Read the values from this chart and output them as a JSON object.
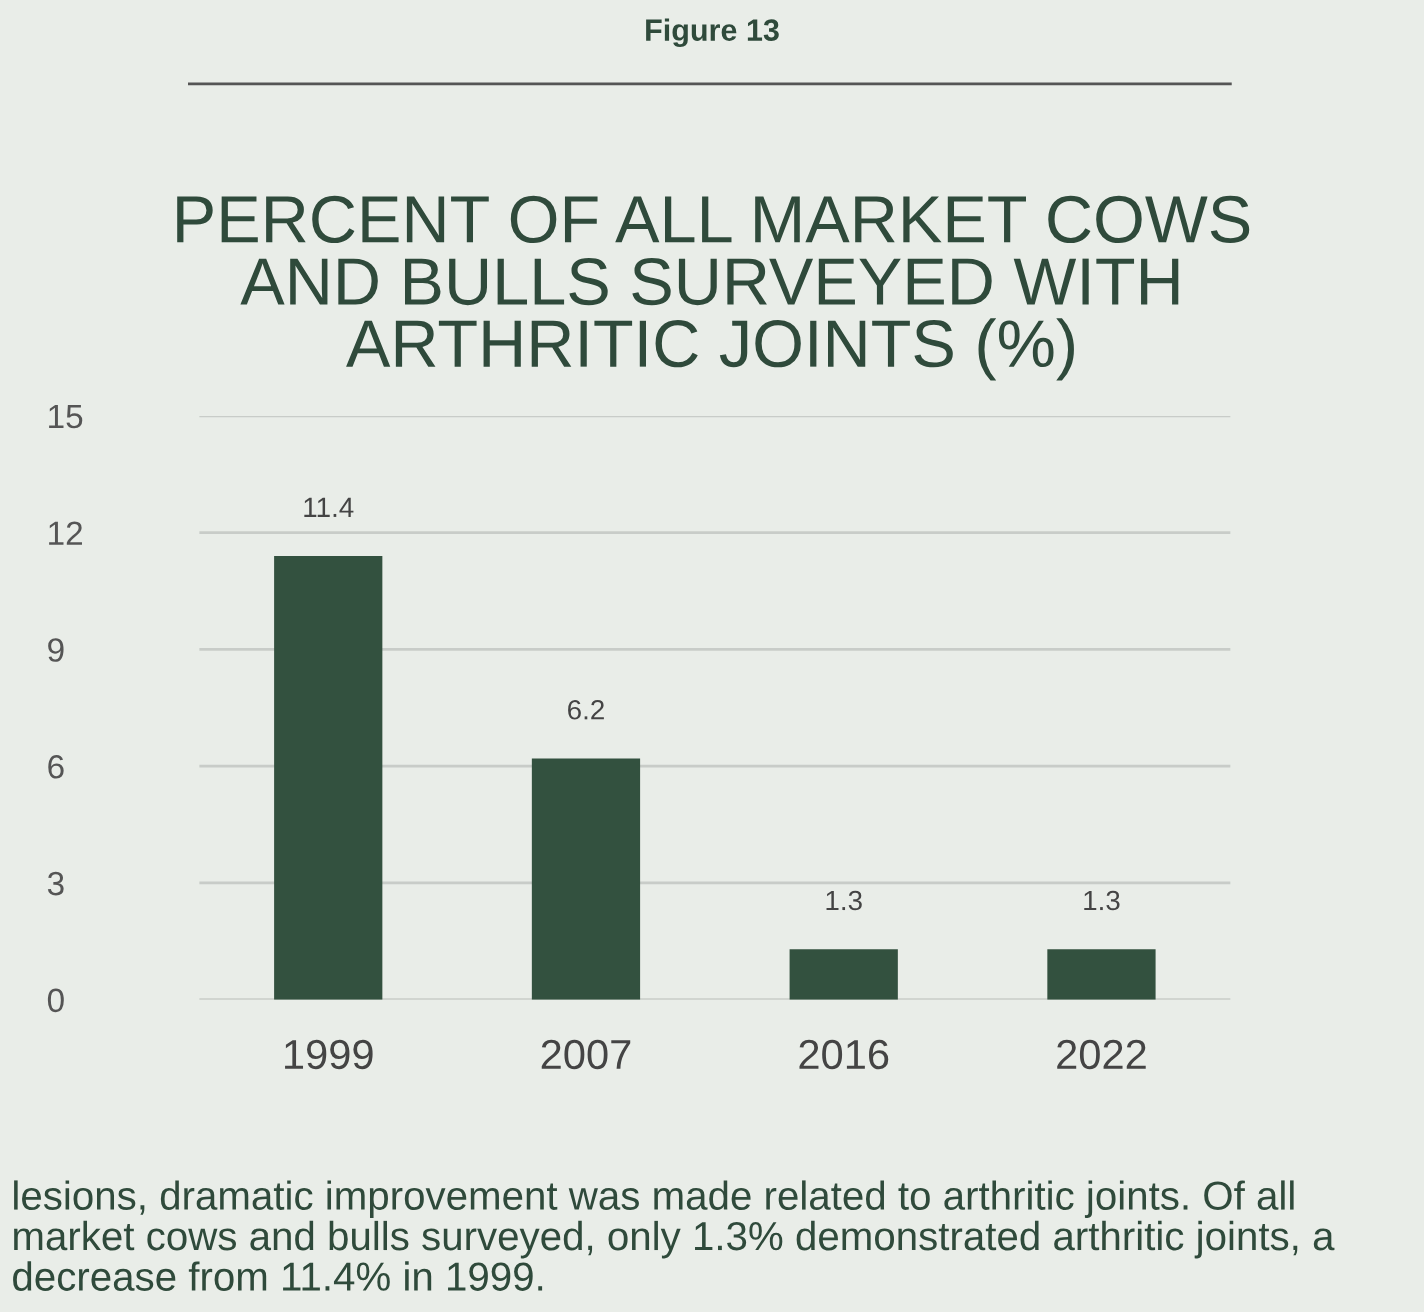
{
  "chart_data": {
    "type": "bar",
    "title": "PERCENT OF ALL MARKET COWS\nAND BULLS SURVEYED WITH\nARTHRITIC JOINTS (%)",
    "categories": [
      "1999",
      "2007",
      "2016",
      "2022"
    ],
    "values": [
      11.4,
      6.2,
      1.3,
      1.3
    ],
    "color": "#33513f",
    "ylim": [
      0,
      15
    ],
    "yticks": [
      0,
      3,
      6,
      9,
      12,
      15
    ],
    "grid": "y",
    "data_labels": true,
    "annotations": [
      "Figure 13",
      "lesions, dramatic improvement was made related to arthritic joints. Of all market cows and bulls surveyed, only 1.3% demonstrated arthritic joints, a decrease from 11.4% in 1999."
    ]
  }
}
